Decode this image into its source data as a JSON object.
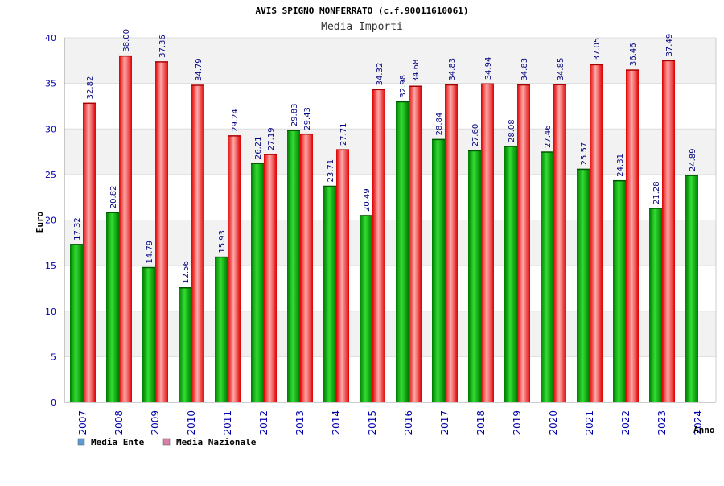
{
  "chart_data": {
    "type": "bar",
    "title": "AVIS SPIGNO MONFERRATO (c.f.90011610061)",
    "subtitle": "Media Importi",
    "ylabel": "Euro",
    "xlabel": "Anno",
    "ylim": [
      0,
      40
    ],
    "yticks": [
      0,
      5,
      10,
      15,
      20,
      25,
      30,
      35,
      40
    ],
    "grid": true,
    "legend_position": "bottom-left",
    "categories": [
      "2007",
      "2008",
      "2009",
      "2010",
      "2011",
      "2012",
      "2013",
      "2014",
      "2015",
      "2016",
      "2017",
      "2018",
      "2019",
      "2020",
      "2021",
      "2022",
      "2023",
      "2024"
    ],
    "series": [
      {
        "name": "Media Ente",
        "color": "#00aa00",
        "legend_color": "#5b9bd5",
        "values": [
          17.32,
          20.82,
          14.79,
          12.56,
          15.93,
          26.21,
          29.83,
          23.71,
          20.49,
          32.98,
          28.84,
          27.6,
          28.08,
          27.46,
          25.57,
          24.31,
          21.28,
          24.89
        ]
      },
      {
        "name": "Media Nazionale",
        "color": "#ee1111",
        "legend_color": "#d87fa8",
        "values": [
          32.82,
          38.0,
          37.36,
          34.79,
          29.24,
          27.19,
          29.43,
          27.71,
          34.32,
          34.68,
          34.83,
          34.94,
          34.83,
          34.85,
          37.05,
          36.46,
          37.49,
          null
        ]
      }
    ]
  }
}
